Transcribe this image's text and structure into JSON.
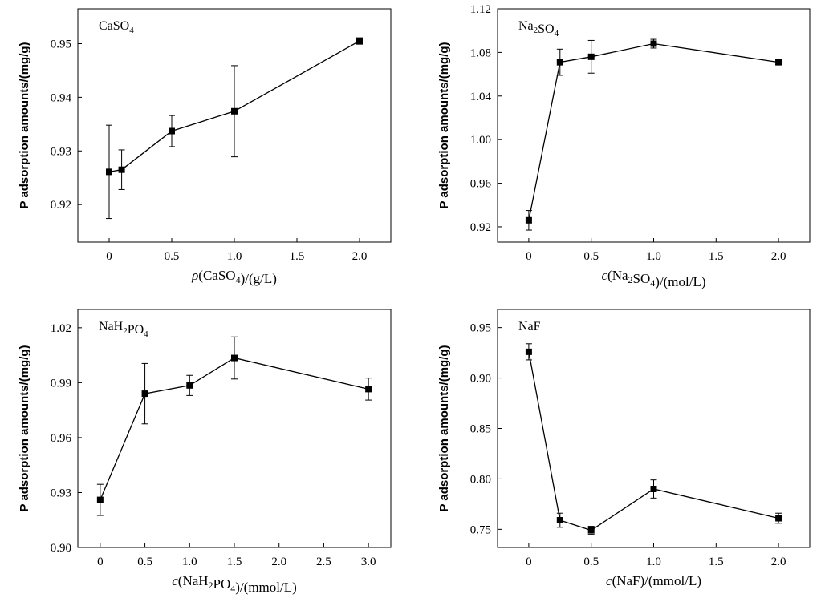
{
  "chart_data": [
    {
      "type": "line",
      "title_parts": [
        [
          "CaSO",
          ""
        ],
        [
          "4",
          "sub"
        ]
      ],
      "ylabel": "P adsorption amounts/(mg/g)",
      "xlabel_parts": [
        [
          "ρ",
          "i"
        ],
        [
          "(CaSO",
          ""
        ],
        [
          "4",
          "sub"
        ],
        [
          ")/(g/L)",
          ""
        ]
      ],
      "xlim": [
        -0.25,
        2.25
      ],
      "ylim": [
        0.913,
        0.9565
      ],
      "xticks": [
        0,
        0.5,
        1.0,
        1.5,
        2.0
      ],
      "xtick_labels": [
        "0",
        "0.5",
        "1.0",
        "1.5",
        "2.0"
      ],
      "yticks": [
        0.92,
        0.93,
        0.94,
        0.95
      ],
      "ytick_labels": [
        "0.92",
        "0.93",
        "0.94",
        "0.95"
      ],
      "series": [
        {
          "x": [
            0,
            0.1,
            0.5,
            1.0,
            2.0
          ],
          "y": [
            0.9261,
            0.9265,
            0.9337,
            0.9374,
            0.9505
          ],
          "yerr": [
            0.0087,
            0.0037,
            0.0029,
            0.0085,
            0.0006
          ]
        }
      ]
    },
    {
      "type": "line",
      "title_parts": [
        [
          "Na",
          ""
        ],
        [
          "2",
          "sub"
        ],
        [
          "SO",
          ""
        ],
        [
          "4",
          "sub"
        ]
      ],
      "ylabel": "P adsorption amounts/(mg/g)",
      "xlabel_parts": [
        [
          "c",
          "i"
        ],
        [
          "(Na",
          ""
        ],
        [
          "2",
          "sub"
        ],
        [
          "SO",
          ""
        ],
        [
          "4",
          "sub"
        ],
        [
          ")/(mol/L)",
          ""
        ]
      ],
      "xlim": [
        -0.25,
        2.25
      ],
      "ylim": [
        0.906,
        1.12
      ],
      "xticks": [
        0,
        0.5,
        1.0,
        1.5,
        2.0
      ],
      "xtick_labels": [
        "0",
        "0.5",
        "1.0",
        "1.5",
        "2.0"
      ],
      "yticks": [
        0.92,
        0.96,
        1.0,
        1.04,
        1.08,
        1.12
      ],
      "ytick_labels": [
        "0.92",
        "0.96",
        "1.00",
        "1.04",
        "1.08",
        "1.12"
      ],
      "series": [
        {
          "x": [
            0,
            0.25,
            0.5,
            1.0,
            2.0
          ],
          "y": [
            0.926,
            1.071,
            1.076,
            1.088,
            1.071
          ],
          "yerr": [
            0.009,
            0.012,
            0.015,
            0.004,
            0.002
          ]
        }
      ]
    },
    {
      "type": "line",
      "title_parts": [
        [
          "NaH",
          ""
        ],
        [
          "2",
          "sub"
        ],
        [
          "PO",
          ""
        ],
        [
          "4",
          "sub"
        ]
      ],
      "ylabel": "P adsorption amounts/(mg/g)",
      "xlabel_parts": [
        [
          "c",
          "i"
        ],
        [
          "(NaH",
          ""
        ],
        [
          "2",
          "sub"
        ],
        [
          "PO",
          ""
        ],
        [
          "4",
          "sub"
        ],
        [
          ")/(mmol/L)",
          ""
        ]
      ],
      "xlim": [
        -0.25,
        3.25
      ],
      "ylim": [
        0.9,
        1.03
      ],
      "xticks": [
        0,
        0.5,
        1.0,
        1.5,
        2.0,
        2.5,
        3.0
      ],
      "xtick_labels": [
        "0",
        "0.5",
        "1.0",
        "1.5",
        "2.0",
        "2.5",
        "3.0"
      ],
      "yticks": [
        0.9,
        0.93,
        0.96,
        0.99,
        1.02
      ],
      "ytick_labels": [
        "0.90",
        "0.93",
        "0.96",
        "0.99",
        "1.02"
      ],
      "series": [
        {
          "x": [
            0,
            0.5,
            1.0,
            1.5,
            3.0
          ],
          "y": [
            0.926,
            0.984,
            0.9885,
            1.0035,
            0.9865
          ],
          "yerr": [
            0.0085,
            0.0165,
            0.0055,
            0.0115,
            0.006
          ]
        }
      ]
    },
    {
      "type": "line",
      "title_parts": [
        [
          "NaF",
          ""
        ]
      ],
      "ylabel": "P adsorption amounts/(mg/g)",
      "xlabel_parts": [
        [
          "c",
          "i"
        ],
        [
          "(NaF)/(mmol/L)",
          ""
        ]
      ],
      "xlim": [
        -0.25,
        2.25
      ],
      "ylim": [
        0.732,
        0.968
      ],
      "xticks": [
        0,
        0.5,
        1.0,
        1.5,
        2.0
      ],
      "xtick_labels": [
        "0",
        "0.5",
        "1.0",
        "1.5",
        "2.0"
      ],
      "yticks": [
        0.75,
        0.8,
        0.85,
        0.9,
        0.95
      ],
      "ytick_labels": [
        "0.75",
        "0.80",
        "0.85",
        "0.90",
        "0.95"
      ],
      "series": [
        {
          "x": [
            0,
            0.25,
            0.5,
            1.0,
            2.0
          ],
          "y": [
            0.926,
            0.759,
            0.749,
            0.79,
            0.761
          ],
          "yerr": [
            0.008,
            0.007,
            0.004,
            0.009,
            0.005
          ]
        }
      ]
    }
  ]
}
